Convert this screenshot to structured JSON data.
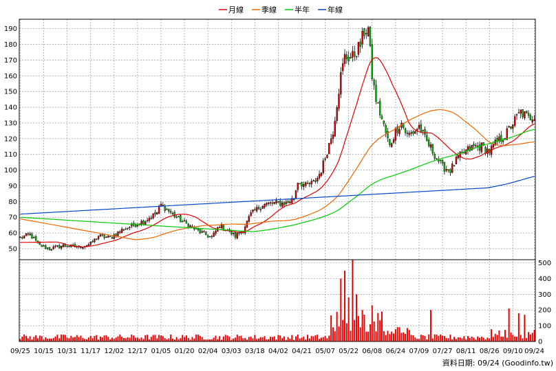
{
  "chart_data": {
    "type": "candlestick",
    "legend": [
      {
        "name": "月線",
        "color": "#dd0000"
      },
      {
        "name": "季線",
        "color": "#ee6600"
      },
      {
        "name": "半年",
        "color": "#00cc00"
      },
      {
        "name": "年線",
        "color": "#0044cc"
      }
    ],
    "price_axis": {
      "min": 43,
      "max": 196,
      "ticks": [
        50,
        60,
        70,
        80,
        90,
        100,
        110,
        120,
        130,
        140,
        150,
        160,
        170,
        180,
        190
      ]
    },
    "volume_axis": {
      "min": 0,
      "max": 520,
      "ticks": [
        0,
        100,
        200,
        300,
        400,
        500
      ]
    },
    "x_ticks": [
      {
        "label": "09/25",
        "i": 0
      },
      {
        "label": "10/15",
        "i": 12
      },
      {
        "label": "10/31",
        "i": 24
      },
      {
        "label": "11/17",
        "i": 36
      },
      {
        "label": "12/02",
        "i": 48
      },
      {
        "label": "12/17",
        "i": 60
      },
      {
        "label": "01/05",
        "i": 72
      },
      {
        "label": "01/20",
        "i": 84
      },
      {
        "label": "02/04",
        "i": 96
      },
      {
        "label": "03/03",
        "i": 108
      },
      {
        "label": "03/18",
        "i": 120
      },
      {
        "label": "04/02",
        "i": 132
      },
      {
        "label": "04/21",
        "i": 144
      },
      {
        "label": "05/07",
        "i": 156
      },
      {
        "label": "05/22",
        "i": 168
      },
      {
        "label": "06/08",
        "i": 180
      },
      {
        "label": "06/24",
        "i": 192
      },
      {
        "label": "07/09",
        "i": 204
      },
      {
        "label": "07/27",
        "i": 216
      },
      {
        "label": "08/11",
        "i": 228
      },
      {
        "label": "08/26",
        "i": 240
      },
      {
        "label": "09/10",
        "i": 252
      },
      {
        "label": "09/24",
        "i": 263
      }
    ],
    "n_bars": 264,
    "close_anchors": [
      [
        0,
        57
      ],
      [
        5,
        59
      ],
      [
        10,
        52
      ],
      [
        15,
        50
      ],
      [
        22,
        52
      ],
      [
        30,
        51
      ],
      [
        36,
        53
      ],
      [
        40,
        58
      ],
      [
        46,
        57
      ],
      [
        52,
        62
      ],
      [
        58,
        65
      ],
      [
        64,
        68
      ],
      [
        70,
        73
      ],
      [
        72,
        78
      ],
      [
        75,
        75
      ],
      [
        82,
        68
      ],
      [
        90,
        62
      ],
      [
        98,
        57
      ],
      [
        102,
        65
      ],
      [
        106,
        62
      ],
      [
        110,
        58
      ],
      [
        114,
        62
      ],
      [
        118,
        72
      ],
      [
        124,
        78
      ],
      [
        130,
        79
      ],
      [
        136,
        79
      ],
      [
        140,
        82
      ],
      [
        142,
        93
      ],
      [
        146,
        90
      ],
      [
        150,
        92
      ],
      [
        152,
        95
      ],
      [
        154,
        100
      ],
      [
        156,
        108
      ],
      [
        160,
        125
      ],
      [
        164,
        160
      ],
      [
        166,
        172
      ],
      [
        170,
        172
      ],
      [
        174,
        180
      ],
      [
        176,
        188
      ],
      [
        178,
        190
      ],
      [
        180,
        160
      ],
      [
        182,
        145
      ],
      [
        186,
        128
      ],
      [
        189,
        115
      ],
      [
        192,
        125
      ],
      [
        195,
        130
      ],
      [
        198,
        122
      ],
      [
        202,
        125
      ],
      [
        204,
        128
      ],
      [
        207,
        120
      ],
      [
        212,
        110
      ],
      [
        216,
        102
      ],
      [
        220,
        100
      ],
      [
        224,
        108
      ],
      [
        228,
        112
      ],
      [
        232,
        115
      ],
      [
        236,
        115
      ],
      [
        240,
        112
      ],
      [
        244,
        118
      ],
      [
        248,
        122
      ],
      [
        252,
        130
      ],
      [
        256,
        137
      ],
      [
        260,
        133
      ],
      [
        263,
        135
      ]
    ],
    "spike_bars": [
      [
        164,
        400
      ],
      [
        166,
        450
      ],
      [
        170,
        520
      ],
      [
        172,
        300
      ],
      [
        168,
        280
      ],
      [
        175,
        200
      ],
      [
        180,
        230
      ],
      [
        185,
        190
      ],
      [
        210,
        200
      ],
      [
        250,
        210
      ],
      [
        255,
        180
      ],
      [
        258,
        170
      ]
    ],
    "credit": "資料日期: 09/24 (Goodinfo.tw)"
  }
}
